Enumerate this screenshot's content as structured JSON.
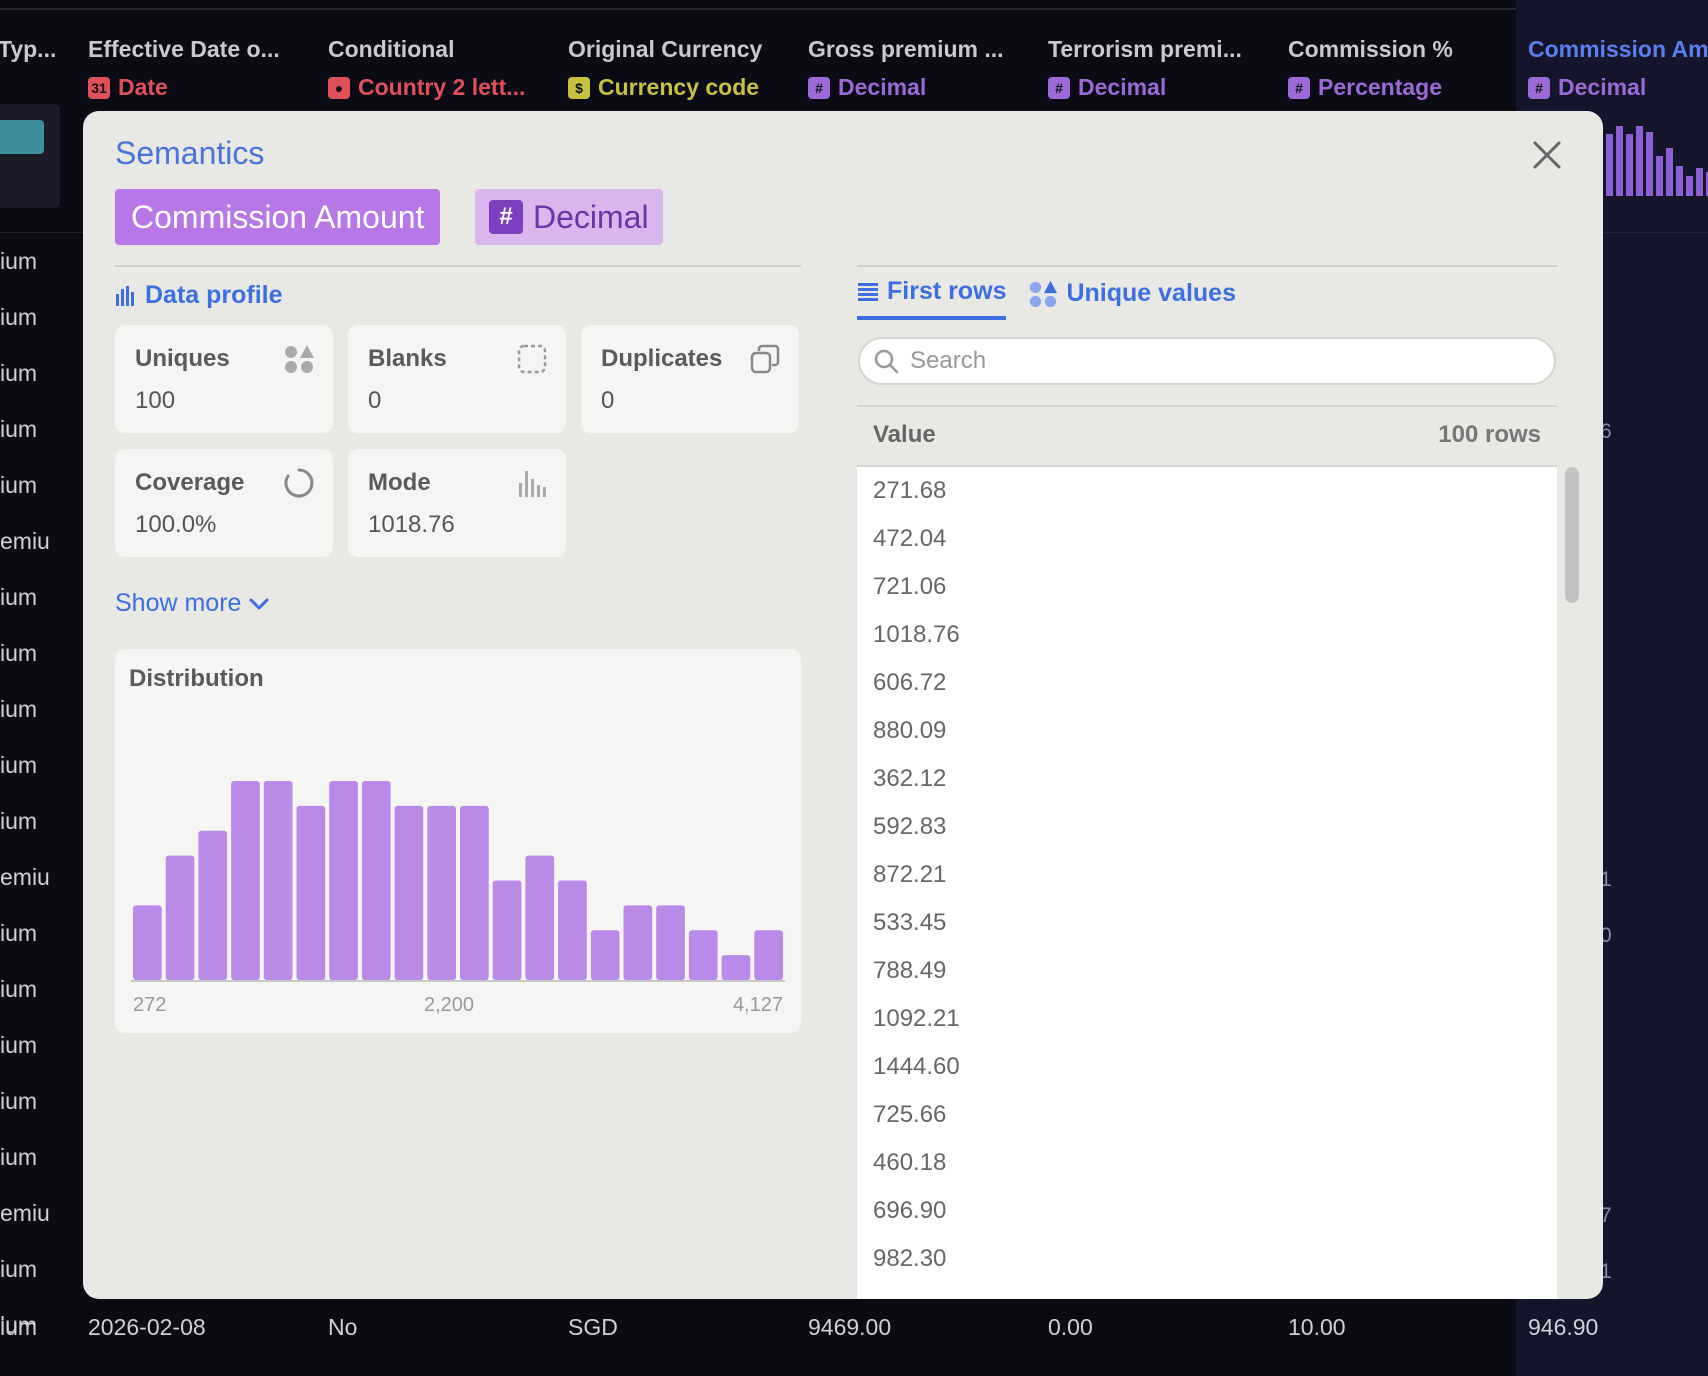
{
  "background": {
    "columns": [
      {
        "title": "Typ...",
        "type": "",
        "icon": "",
        "color": "#c9c9d4"
      },
      {
        "title": "Effective Date o...",
        "type": "Date",
        "icon": "calendar-icon",
        "color": "#e0505a"
      },
      {
        "title": "Conditional",
        "type": "Country 2 lett...",
        "icon": "globe-icon",
        "color": "#e0505a"
      },
      {
        "title": "Original Currency",
        "type": "Currency code",
        "icon": "dollar-icon",
        "color": "#c8c040"
      },
      {
        "title": "Gross premium ...",
        "type": "Decimal",
        "icon": "hash-icon",
        "color": "#9b6ad6"
      },
      {
        "title": "Terrorism premi...",
        "type": "Decimal",
        "icon": "hash-icon",
        "color": "#9b6ad6"
      },
      {
        "title": "Commission %",
        "type": "Percentage",
        "icon": "hash-icon",
        "color": "#9b6ad6"
      },
      {
        "title": "Commission Am",
        "type": "Decimal",
        "icon": "hash-icon",
        "color": "#9b6ad6"
      }
    ],
    "first_col_rows": [
      "ium",
      "ium",
      "ium",
      "ium",
      "ium",
      "emiu",
      "ium",
      "ium",
      "ium",
      "ium",
      "ium",
      "emiu",
      "ium",
      "ium",
      "ium",
      "ium",
      "ium",
      "emiu",
      "ium",
      "ium"
    ],
    "right_col_partial": [
      {
        "row": 3,
        "text": "6"
      },
      {
        "row": 11,
        "text": "1"
      },
      {
        "row": 12,
        "text": "0"
      },
      {
        "row": 17,
        "text": "7"
      },
      {
        "row": 18,
        "text": "1"
      }
    ],
    "bottom_row": {
      "first": "ium",
      "date": "2026-02-08",
      "conditional": "No",
      "currency": "SGD",
      "gross": "9469.00",
      "terrorism": "0.00",
      "commission_pct": "10.00",
      "commission_amt": "946.90"
    }
  },
  "modal": {
    "title": "Semantics",
    "column_name": "Commission Amount",
    "type_label": "Decimal",
    "type_icon": "#",
    "data_profile_label": "Data profile",
    "stats": {
      "uniques": {
        "label": "Uniques",
        "value": "100"
      },
      "blanks": {
        "label": "Blanks",
        "value": "0"
      },
      "duplicates": {
        "label": "Duplicates",
        "value": "0"
      },
      "coverage": {
        "label": "Coverage",
        "value": "100.0%"
      },
      "mode": {
        "label": "Mode",
        "value": "1018.76"
      }
    },
    "show_more": "Show more",
    "tabs": {
      "first_rows": "First rows",
      "unique_values": "Unique values"
    },
    "search_placeholder": "Search",
    "table": {
      "header_value": "Value",
      "header_count": "100 rows",
      "rows": [
        "271.68",
        "472.04",
        "721.06",
        "1018.76",
        "606.72",
        "880.09",
        "362.12",
        "592.83",
        "872.21",
        "533.45",
        "788.49",
        "1092.21",
        "1444.60",
        "725.66",
        "460.18",
        "696.90",
        "982.30"
      ]
    }
  },
  "chart_data": {
    "type": "bar",
    "title": "Distribution",
    "values": [
      3,
      5,
      6,
      8,
      8,
      7,
      8,
      8,
      7,
      7,
      7,
      4,
      5,
      4,
      2,
      3,
      3,
      2,
      1,
      2
    ],
    "tick_labels": [
      "272",
      "2,200",
      "4,127"
    ],
    "color": "#b98ae8",
    "ylim": [
      0,
      8
    ]
  }
}
